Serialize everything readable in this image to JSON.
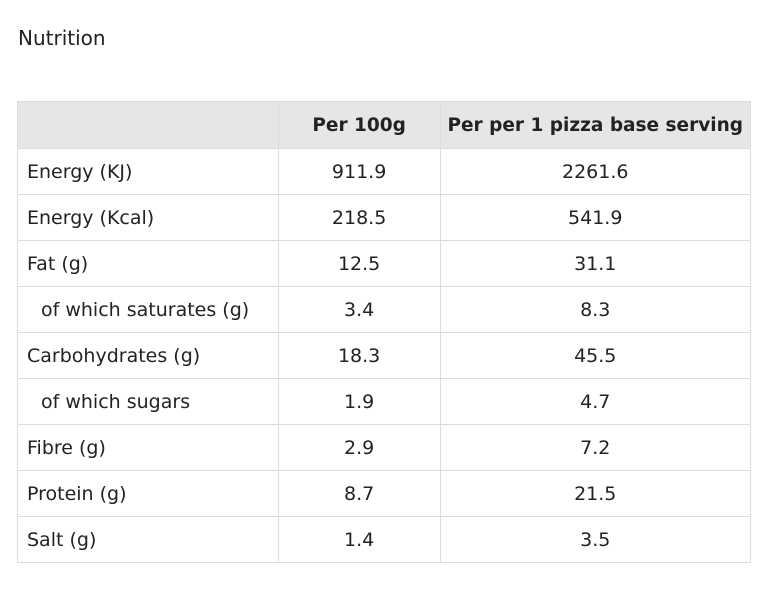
{
  "title": "Nutrition",
  "table": {
    "header": [
      "",
      "Per 100g",
      "Per per 1 pizza base serving"
    ],
    "rows": [
      [
        "Energy (KJ)",
        "911.9",
        "2261.6"
      ],
      [
        "Energy (Kcal)",
        "218.5",
        "541.9"
      ],
      [
        "Fat (g)",
        "12.5",
        "31.1"
      ],
      [
        "of which saturates (g)",
        "3.4",
        "8.3"
      ],
      [
        "Carbohydrates (g)",
        "18.3",
        "45.5"
      ],
      [
        "of which sugars",
        "1.9",
        "4.7"
      ],
      [
        "Fibre (g)",
        "2.9",
        "7.2"
      ],
      [
        "Protein (g)",
        "8.7",
        "21.5"
      ],
      [
        "Salt (g)",
        "1.4",
        "3.5"
      ]
    ]
  }
}
